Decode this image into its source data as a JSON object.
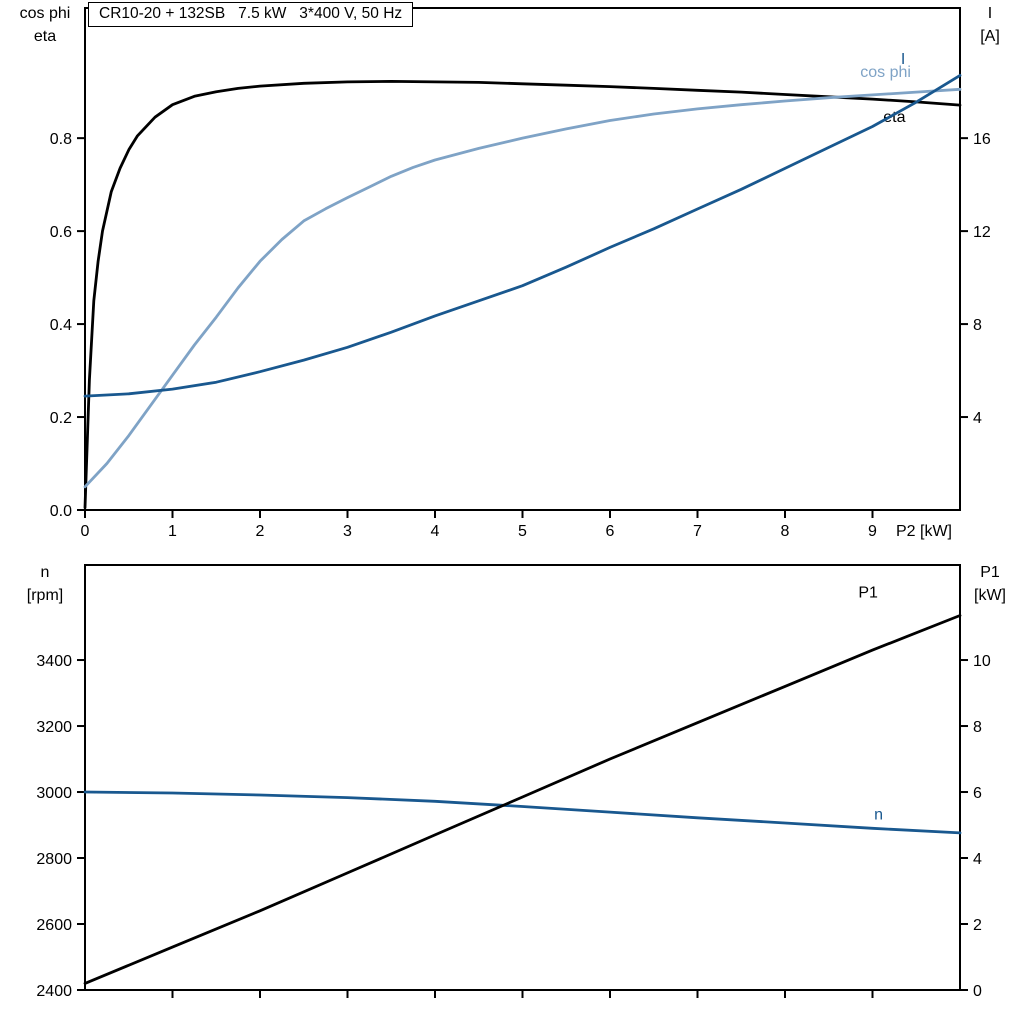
{
  "accent_colors": {
    "dark_blue": "#19588f",
    "light_blue": "#7fa3c6",
    "black": "#000000"
  },
  "chart_data": [
    {
      "id": "top",
      "type": "line",
      "title": "CR10-20 + 132SB   7.5 kW   3*400 V, 50 Hz",
      "x_axis": {
        "label": "P2 [kW]",
        "range": [
          0,
          10
        ],
        "ticks": [
          0,
          1,
          2,
          3,
          4,
          5,
          6,
          7,
          8,
          9
        ],
        "decimals": 0,
        "show_labels": true
      },
      "left_axis": {
        "label_lines": [
          "cos phi",
          "eta"
        ],
        "range": [
          0,
          1.08
        ],
        "ticks": [
          0,
          0.2,
          0.4,
          0.6,
          0.8
        ],
        "decimals": 1
      },
      "right_axis": {
        "label_lines": [
          "I",
          "[A]"
        ],
        "range": [
          0,
          21.6
        ],
        "ticks": [
          4,
          8,
          12,
          16
        ],
        "decimals": 0
      },
      "grid": false,
      "series": [
        {
          "name": "eta",
          "axis": "left",
          "color": "#000000",
          "label": {
            "text": "eta",
            "x": 9.25,
            "y": 0.835,
            "anchor": "middle"
          },
          "points": [
            [
              0,
              0.005
            ],
            [
              0.05,
              0.28
            ],
            [
              0.1,
              0.45
            ],
            [
              0.15,
              0.535
            ],
            [
              0.2,
              0.6
            ],
            [
              0.3,
              0.685
            ],
            [
              0.4,
              0.735
            ],
            [
              0.5,
              0.775
            ],
            [
              0.6,
              0.805
            ],
            [
              0.8,
              0.845
            ],
            [
              1.0,
              0.872
            ],
            [
              1.25,
              0.89
            ],
            [
              1.5,
              0.9
            ],
            [
              1.75,
              0.907
            ],
            [
              2.0,
              0.912
            ],
            [
              2.5,
              0.918
            ],
            [
              3.0,
              0.921
            ],
            [
              3.5,
              0.922
            ],
            [
              4.0,
              0.921
            ],
            [
              4.5,
              0.92
            ],
            [
              5.0,
              0.917
            ],
            [
              5.5,
              0.914
            ],
            [
              6.0,
              0.911
            ],
            [
              6.5,
              0.907
            ],
            [
              7.0,
              0.903
            ],
            [
              7.5,
              0.899
            ],
            [
              8.0,
              0.894
            ],
            [
              8.5,
              0.889
            ],
            [
              9.0,
              0.884
            ],
            [
              9.5,
              0.878
            ],
            [
              10,
              0.871
            ]
          ]
        },
        {
          "name": "cos-phi",
          "axis": "left",
          "color": "#7fa3c6",
          "label": {
            "text": "cos phi",
            "x": 9.15,
            "y": 0.932,
            "anchor": "middle"
          },
          "points": [
            [
              0,
              0.05
            ],
            [
              0.25,
              0.1
            ],
            [
              0.5,
              0.16
            ],
            [
              0.75,
              0.225
            ],
            [
              1.0,
              0.29
            ],
            [
              1.25,
              0.355
            ],
            [
              1.5,
              0.415
            ],
            [
              1.75,
              0.478
            ],
            [
              2.0,
              0.535
            ],
            [
              2.25,
              0.582
            ],
            [
              2.5,
              0.622
            ],
            [
              2.75,
              0.648
            ],
            [
              3.0,
              0.672
            ],
            [
              3.25,
              0.695
            ],
            [
              3.5,
              0.718
            ],
            [
              3.75,
              0.737
            ],
            [
              4.0,
              0.753
            ],
            [
              4.5,
              0.778
            ],
            [
              5.0,
              0.8
            ],
            [
              5.5,
              0.82
            ],
            [
              6.0,
              0.838
            ],
            [
              6.5,
              0.852
            ],
            [
              7.0,
              0.863
            ],
            [
              7.5,
              0.872
            ],
            [
              8.0,
              0.88
            ],
            [
              8.5,
              0.887
            ],
            [
              9.0,
              0.893
            ],
            [
              9.5,
              0.899
            ],
            [
              10,
              0.905
            ]
          ]
        },
        {
          "name": "I",
          "axis": "right",
          "color": "#19588f",
          "label": {
            "text": "I",
            "x": 9.35,
            "y": 19.2,
            "anchor": "middle"
          },
          "points": [
            [
              0,
              4.9
            ],
            [
              0.5,
              5.0
            ],
            [
              1.0,
              5.2
            ],
            [
              1.5,
              5.5
            ],
            [
              2.0,
              5.95
            ],
            [
              2.5,
              6.45
            ],
            [
              3.0,
              7.0
            ],
            [
              3.5,
              7.65
            ],
            [
              4.0,
              8.35
            ],
            [
              4.5,
              9.0
            ],
            [
              5.0,
              9.65
            ],
            [
              5.5,
              10.45
            ],
            [
              6.0,
              11.3
            ],
            [
              6.5,
              12.1
            ],
            [
              7.0,
              12.95
            ],
            [
              7.5,
              13.8
            ],
            [
              8.0,
              14.7
            ],
            [
              8.5,
              15.6
            ],
            [
              9.0,
              16.5
            ],
            [
              9.5,
              17.55
            ],
            [
              10,
              18.7
            ]
          ]
        }
      ]
    },
    {
      "id": "bottom",
      "type": "line",
      "title": "",
      "x_axis": {
        "label": "",
        "range": [
          0,
          10
        ],
        "ticks": [
          1,
          2,
          3,
          4,
          5,
          6,
          7,
          8,
          9
        ],
        "decimals": 0,
        "show_labels": false
      },
      "left_axis": {
        "label_lines": [
          "n",
          "[rpm]"
        ],
        "range": [
          2400,
          3688
        ],
        "ticks": [
          2400,
          2600,
          2800,
          3000,
          3200,
          3400
        ],
        "decimals": 0
      },
      "right_axis": {
        "label_lines": [
          "P1",
          "[kW]"
        ],
        "range": [
          0,
          12.88
        ],
        "ticks": [
          0,
          2,
          4,
          6,
          8,
          10
        ],
        "decimals": 0
      },
      "grid": false,
      "series": [
        {
          "name": "n",
          "axis": "left",
          "color": "#19588f",
          "label": {
            "text": "n",
            "x": 9.07,
            "y": 2916,
            "anchor": "middle"
          },
          "points": [
            [
              0,
              3000
            ],
            [
              1,
              2997
            ],
            [
              2,
              2991
            ],
            [
              3,
              2983
            ],
            [
              4,
              2972
            ],
            [
              5,
              2956
            ],
            [
              6,
              2939
            ],
            [
              7,
              2922
            ],
            [
              8,
              2906
            ],
            [
              9,
              2890
            ],
            [
              10,
              2876
            ]
          ]
        },
        {
          "name": "P1",
          "axis": "right",
          "color": "#000000",
          "label": {
            "text": "P1",
            "x": 8.95,
            "y": 11.9,
            "anchor": "middle"
          },
          "points": [
            [
              0,
              0.2
            ],
            [
              1,
              1.3
            ],
            [
              2,
              2.4
            ],
            [
              3,
              3.55
            ],
            [
              4,
              4.7
            ],
            [
              5,
              5.85
            ],
            [
              6,
              7.0
            ],
            [
              7,
              8.1
            ],
            [
              8,
              9.2
            ],
            [
              9,
              10.3
            ],
            [
              10,
              11.35
            ]
          ]
        }
      ]
    }
  ]
}
